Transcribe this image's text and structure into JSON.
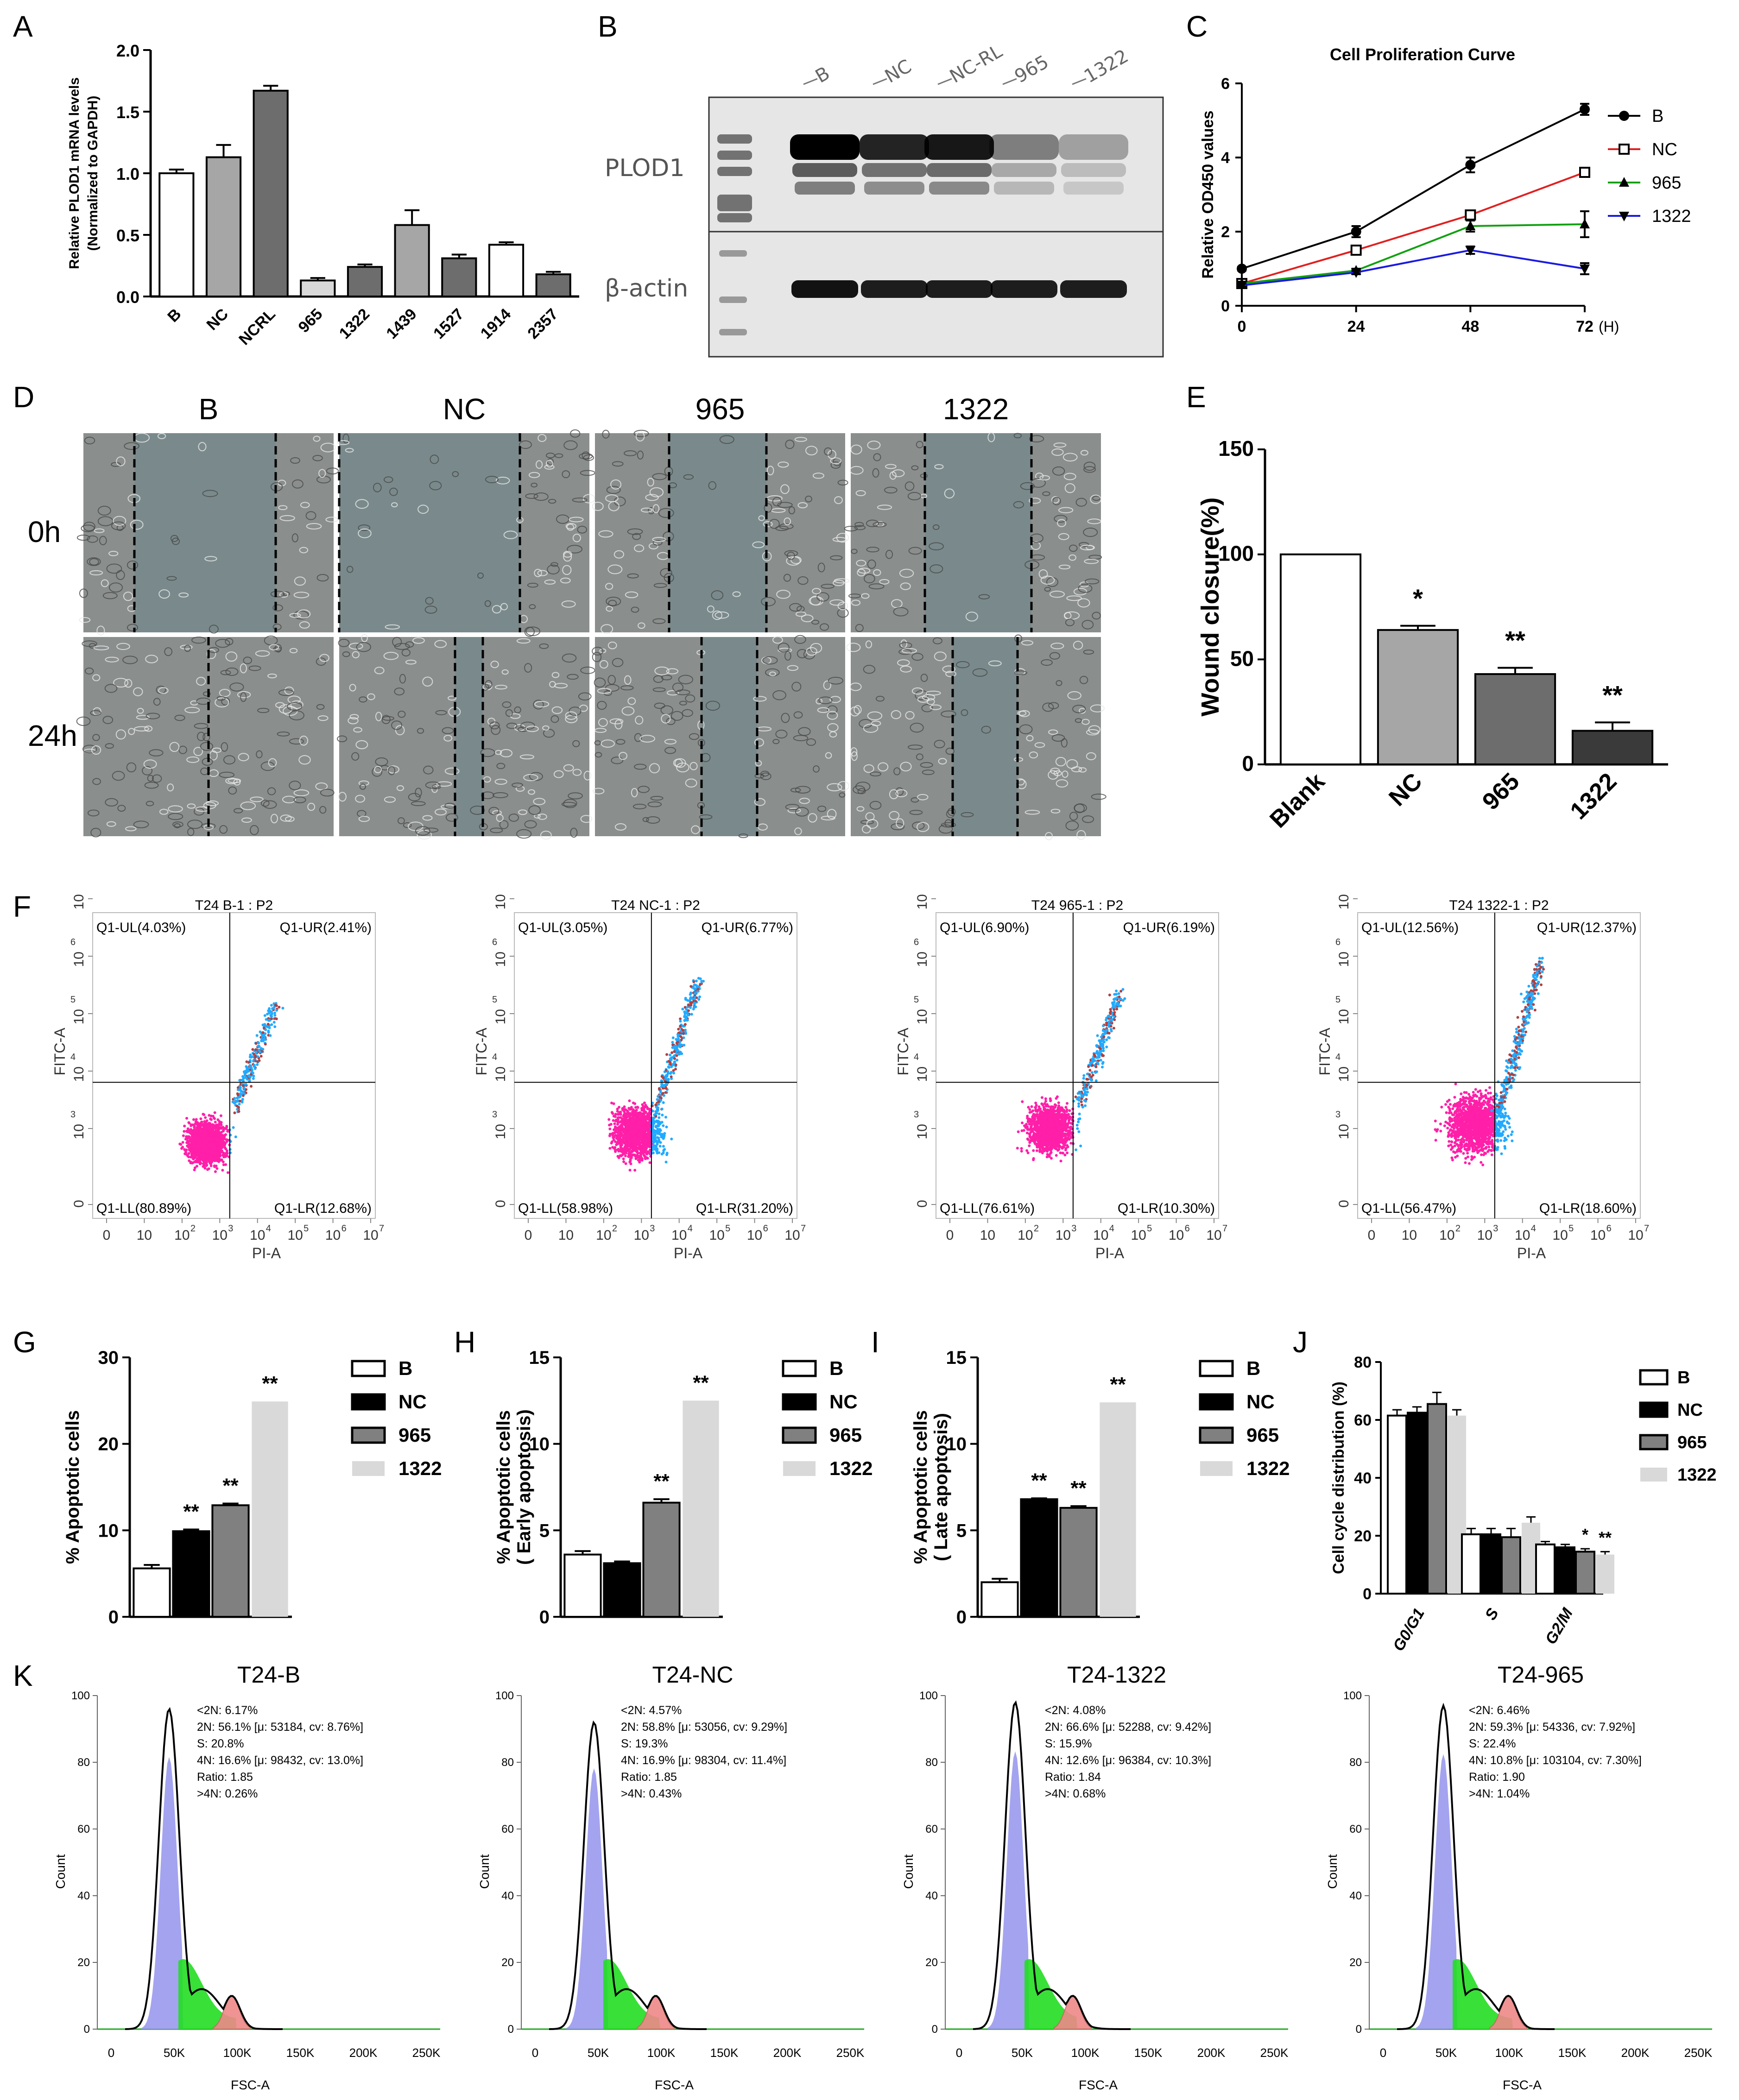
{
  "panels": {
    "A": "A",
    "B": "B",
    "C": "C",
    "D": "D",
    "E": "E",
    "F": "F",
    "G": "G",
    "H": "H",
    "I": "I",
    "J": "J",
    "K": "K"
  },
  "colors": {
    "white": "#ffffff",
    "light_gray": "#d9d9d9",
    "mid_gray": "#a6a6a6",
    "dark_gray": "#6d6d6d",
    "black": "#000000",
    "line_B": "#000000",
    "line_NC": "#e02020",
    "line_965": "#10a010",
    "line_1322": "#1a1ae0",
    "flow_pink": "#ff1fa8",
    "flow_cyan": "#22aaff",
    "hist_blue": "#9999ee",
    "hist_green": "#22dd22",
    "hist_red": "#ee8888"
  },
  "western_blot": {
    "lanes": [
      "B",
      "NC",
      "NC-RL",
      "965",
      "1322"
    ],
    "row1": "PLOD1",
    "row2": "β-actin",
    "plod1_intensity": [
      1.0,
      0.85,
      0.9,
      0.45,
      0.3
    ],
    "actin_intensity": [
      1.0,
      0.95,
      0.95,
      0.95,
      0.95
    ]
  },
  "scratch": {
    "columns": [
      "B",
      "NC",
      "965",
      "1322"
    ],
    "rows": [
      "0h",
      "24h"
    ]
  },
  "flow_panels": [
    {
      "title": "T24 B-1 : P2",
      "ul": "Q1-UL(4.03%)",
      "ur": "Q1-UR(2.41%)",
      "ll": "Q1-LL(80.89%)",
      "lr": "Q1-LR(12.68%)"
    },
    {
      "title": "T24 NC-1 : P2",
      "ul": "Q1-UL(3.05%)",
      "ur": "Q1-UR(6.77%)",
      "ll": "Q1-LL(58.98%)",
      "lr": "Q1-LR(31.20%)"
    },
    {
      "title": "T24 965-1 : P2",
      "ul": "Q1-UL(6.90%)",
      "ur": "Q1-UR(6.19%)",
      "ll": "Q1-LL(76.61%)",
      "lr": "Q1-LR(10.30%)"
    },
    {
      "title": "T24 1322-1 : P2",
      "ul": "Q1-UL(12.56%)",
      "ur": "Q1-UR(12.37%)",
      "ll": "Q1-LL(56.47%)",
      "lr": "Q1-LR(18.60%)"
    }
  ],
  "flow_axes": {
    "x_label": "PI-A",
    "y_label": "FITC-A",
    "x_ticks": [
      "0",
      "10",
      "10",
      "10",
      "10",
      "10",
      "10",
      "10"
    ],
    "x_exps": [
      "",
      "2",
      "3",
      "4",
      "5",
      "6",
      "7"
    ],
    "y_ticks": [
      "0",
      "10",
      "10",
      "10",
      "10",
      "10"
    ],
    "y_exps": [
      "",
      "3",
      "4",
      "5",
      "6",
      "7"
    ]
  },
  "hist_panels": [
    {
      "title": "T24-B",
      "lines": [
        "<2N: 6.17%",
        "2N: 56.1%  [μ: 53184, cv: 8.76%]",
        "S: 20.8%",
        "4N: 16.6%  [μ: 98432, cv: 13.0%]",
        "Ratio: 1.85",
        ">4N: 0.26%"
      ]
    },
    {
      "title": "T24-NC",
      "lines": [
        "<2N: 4.57%",
        "2N: 58.8%  [μ: 53056, cv: 9.29%]",
        "S: 19.3%",
        "4N: 16.9%  [μ: 98304, cv: 11.4%]",
        "Ratio: 1.85",
        ">4N: 0.43%"
      ]
    },
    {
      "title": "T24-1322",
      "lines": [
        "<2N: 4.08%",
        "2N: 66.6%  [μ: 52288, cv: 9.42%]",
        "S: 15.9%",
        "4N: 12.6%  [μ: 96384, cv: 10.3%]",
        "Ratio: 1.84",
        ">4N: 0.68%"
      ]
    },
    {
      "title": "T24-965",
      "lines": [
        "<2N: 6.46%",
        "2N: 59.3%  [μ: 54336, cv: 7.92%]",
        "S: 22.4%",
        "4N: 10.8%  [μ: 103104, cv: 7.30%]",
        "Ratio: 1.90",
        ">4N: 1.04%"
      ]
    }
  ],
  "hist_axes": {
    "x_label": "FSC-A",
    "y_label": "Count",
    "x_ticks": [
      "0",
      "50K",
      "100K",
      "150K",
      "200K",
      "250K"
    ],
    "y_ticks": [
      "0",
      "20",
      "40",
      "60",
      "80",
      "100"
    ]
  },
  "chart_data": [
    {
      "id": "A",
      "type": "bar",
      "ylabel": "Relative PLOD1 mRNA levels\n(Normalized to GAPDH)",
      "categories": [
        "B",
        "NC",
        "NCRL",
        "965",
        "1322",
        "1439",
        "1527",
        "1914",
        "2357"
      ],
      "values": [
        1.0,
        1.13,
        1.67,
        0.13,
        0.24,
        0.58,
        0.31,
        0.42,
        0.18
      ],
      "errors": [
        0.03,
        0.1,
        0.04,
        0.02,
        0.02,
        0.12,
        0.03,
        0.02,
        0.02
      ],
      "ylim": [
        0,
        2.0
      ],
      "yticks": [
        "0.0",
        "0.5",
        "1.0",
        "1.5",
        "2.0"
      ],
      "fills": [
        "#ffffff",
        "#a6a6a6",
        "#6d6d6d",
        "#d9d9d9",
        "#6d6d6d",
        "#a6a6a6",
        "#6d6d6d",
        "#ffffff",
        "#6d6d6d"
      ]
    },
    {
      "id": "C",
      "type": "line",
      "title": "Cell Proliferation Curve",
      "ylabel": "Relative OD450 values",
      "xunit": "(H)",
      "x": [
        0,
        24,
        48,
        72
      ],
      "xticks": [
        "0",
        "24",
        "48",
        "72"
      ],
      "yticks": [
        "0",
        "2",
        "4",
        "6"
      ],
      "ylim": [
        0,
        6
      ],
      "series": [
        {
          "name": "B",
          "values": [
            1.0,
            2.0,
            3.8,
            5.3
          ],
          "errors": [
            0.05,
            0.15,
            0.2,
            0.15
          ]
        },
        {
          "name": "NC",
          "values": [
            0.6,
            1.5,
            2.45,
            3.6
          ],
          "errors": [
            0.05,
            0.05,
            0.05,
            0.05
          ]
        },
        {
          "name": "965",
          "values": [
            0.6,
            0.95,
            2.15,
            2.2
          ],
          "errors": [
            0.05,
            0.05,
            0.15,
            0.35
          ]
        },
        {
          "name": "1322",
          "values": [
            0.55,
            0.9,
            1.5,
            1.0
          ],
          "errors": [
            0.05,
            0.05,
            0.1,
            0.15
          ]
        }
      ]
    },
    {
      "id": "E",
      "type": "bar",
      "ylabel": "Wound closure(%)",
      "categories": [
        "Blank",
        "NC",
        "965",
        "1322"
      ],
      "values": [
        100,
        64,
        43,
        16
      ],
      "errors": [
        0,
        2,
        3,
        4
      ],
      "stars": [
        "",
        "*",
        "**",
        "**"
      ],
      "ylim": [
        0,
        150
      ],
      "yticks": [
        "0",
        "50",
        "100",
        "150"
      ],
      "fills": [
        "#ffffff",
        "#a6a6a6",
        "#6d6d6d",
        "#3a3a3a"
      ]
    },
    {
      "id": "G",
      "type": "bar",
      "ylabel": "% Apoptotic cells",
      "categories": [
        "B",
        "NC",
        "965",
        "1322"
      ],
      "values": [
        5.6,
        9.9,
        12.9,
        24.9
      ],
      "errors": [
        0.4,
        0.2,
        0.2,
        0
      ],
      "stars": [
        "",
        "**",
        "**",
        "**"
      ],
      "ylim": [
        0,
        30
      ],
      "yticks": [
        "0",
        "10",
        "20",
        "30"
      ],
      "legend": [
        "B",
        "NC",
        "965",
        "1322"
      ]
    },
    {
      "id": "H",
      "type": "bar",
      "ylabel": "% Apoptotic cells\n( Early apoptosis)",
      "categories": [
        "B",
        "NC",
        "965",
        "1322"
      ],
      "values": [
        3.6,
        3.1,
        6.6,
        12.5
      ],
      "errors": [
        0.2,
        0.1,
        0.2,
        0
      ],
      "stars": [
        "",
        "",
        "**",
        "**"
      ],
      "ylim": [
        0,
        15
      ],
      "yticks": [
        "0",
        "5",
        "10",
        "15"
      ],
      "legend": [
        "B",
        "NC",
        "965",
        "1322"
      ]
    },
    {
      "id": "I",
      "type": "bar",
      "ylabel": "% Apoptotic cells\n( Late apoptosis)",
      "categories": [
        "B",
        "NC",
        "965",
        "1322"
      ],
      "values": [
        2.0,
        6.8,
        6.3,
        12.4
      ],
      "errors": [
        0.2,
        0.05,
        0.1,
        0
      ],
      "stars": [
        "",
        "**",
        "**",
        "**"
      ],
      "ylim": [
        0,
        15
      ],
      "yticks": [
        "0",
        "5",
        "10",
        "15"
      ],
      "legend": [
        "B",
        "NC",
        "965",
        "1322"
      ]
    },
    {
      "id": "J",
      "type": "bar",
      "ylabel": "Cell cycle distribution (%)",
      "categories": [
        "G0/G1",
        "S",
        "G2/M"
      ],
      "series": [
        {
          "name": "B",
          "values": [
            61.5,
            20.5,
            17.0
          ],
          "errors": [
            2,
            2,
            1
          ]
        },
        {
          "name": "NC",
          "values": [
            62.5,
            20.5,
            16.0
          ],
          "errors": [
            2,
            2,
            1
          ]
        },
        {
          "name": "965",
          "values": [
            65.5,
            19.5,
            14.5
          ],
          "errors": [
            4,
            3,
            1
          ]
        },
        {
          "name": "1322",
          "values": [
            61.5,
            24.5,
            13.5
          ],
          "errors": [
            2,
            2,
            1
          ]
        }
      ],
      "stars": [
        "*",
        "**"
      ],
      "ylim": [
        0,
        80
      ],
      "yticks": [
        "0",
        "20",
        "40",
        "60",
        "80"
      ],
      "legend": [
        "B",
        "NC",
        "965",
        "1322"
      ]
    }
  ]
}
